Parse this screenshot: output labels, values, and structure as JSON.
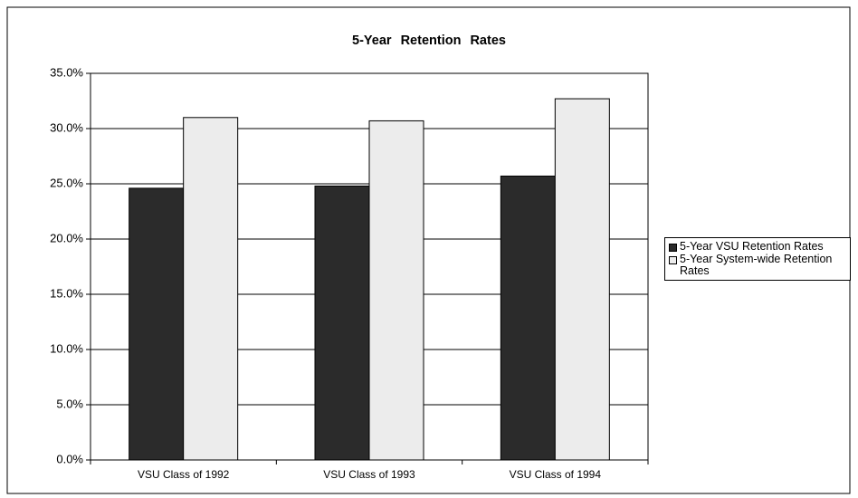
{
  "chart_data": {
    "type": "bar",
    "title": "5-Year Retention Rates",
    "categories": [
      "VSU Class of 1992",
      "VSU Class of 1993",
      "VSU Class of 1994"
    ],
    "series": [
      {
        "name": "5-Year VSU Retention Rates",
        "color": "#2b2b2b",
        "values": [
          24.6,
          24.8,
          25.7
        ]
      },
      {
        "name": "5-Year System-wide Retention Rates",
        "color": "#ececec",
        "values": [
          31.0,
          30.7,
          32.7
        ]
      }
    ],
    "ylim": [
      0,
      35
    ],
    "yticks": [
      {
        "value": 0,
        "label": "0.0%"
      },
      {
        "value": 5,
        "label": "5.0%"
      },
      {
        "value": 10,
        "label": "10.0%"
      },
      {
        "value": 15,
        "label": "15.0%"
      },
      {
        "value": 20,
        "label": "20.0%"
      },
      {
        "value": 25,
        "label": "25.0%"
      },
      {
        "value": 30,
        "label": "30.0%"
      },
      {
        "value": 35,
        "label": "35.0%"
      }
    ],
    "grid": true,
    "legend": "right"
  }
}
